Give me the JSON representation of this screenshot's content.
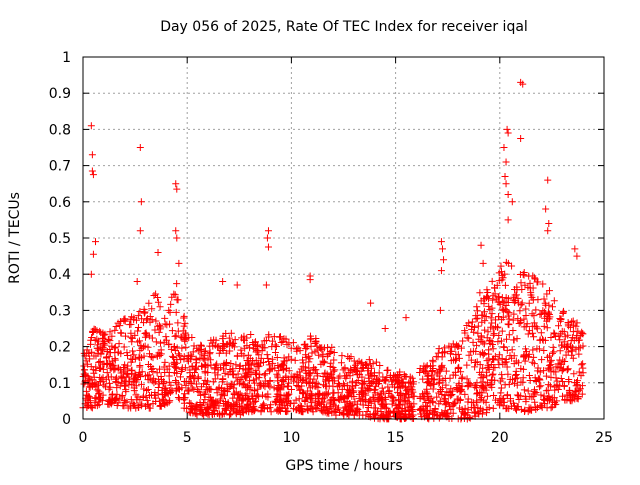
{
  "chart_data": {
    "type": "scatter",
    "title": "Day 056 of 2025, Rate Of TEC Index for receiver iqal",
    "xlabel": "GPS time / hours",
    "ylabel": "ROTI / TECUs",
    "xlim": [
      0,
      25
    ],
    "ylim": [
      0,
      1
    ],
    "grid": true,
    "x_ticks": [
      0,
      5,
      10,
      15,
      20,
      25
    ],
    "x_tick_labels": [
      "0",
      "5",
      "10",
      "15",
      "20",
      "25"
    ],
    "y_ticks": [
      0,
      0.1,
      0.2,
      0.3,
      0.4,
      0.5,
      0.6,
      0.7,
      0.8,
      0.9,
      1
    ],
    "y_tick_labels": [
      "0",
      "0.1",
      "0.2",
      "0.3",
      "0.4",
      "0.5",
      "0.6",
      "0.7",
      "0.8",
      "0.9",
      "1"
    ],
    "marker": "plus",
    "marker_color": "#ff0000",
    "grid_color": "#a0a0a0",
    "series": [
      {
        "name": "ROTI",
        "dense_band_envelope": {
          "x": [
            0,
            0.5,
            1,
            1.5,
            2,
            2.5,
            3,
            3.5,
            4,
            4.5,
            5,
            5.5,
            6,
            6.5,
            7,
            7.5,
            8,
            8.5,
            9,
            9.5,
            10,
            10.5,
            11,
            11.5,
            12,
            12.5,
            13,
            13.5,
            14,
            14.5,
            15,
            15.5,
            15.9,
            16.1,
            16.5,
            17,
            17.5,
            18,
            18.5,
            19,
            19.5,
            20,
            20.5,
            21,
            21.5,
            22,
            22.5,
            23,
            23.5,
            24
          ],
          "low": [
            0.03,
            0.03,
            0.04,
            0.04,
            0.03,
            0.03,
            0.03,
            0.03,
            0.04,
            0.05,
            0.02,
            0.01,
            0.01,
            0.01,
            0.01,
            0.01,
            0.02,
            0.02,
            0.02,
            0.02,
            0.02,
            0.02,
            0.02,
            0.02,
            0.01,
            0.01,
            0.01,
            0.01,
            0.0,
            0.0,
            0.0,
            0.0,
            0.0,
            0.0,
            0.0,
            0.0,
            0.0,
            0.0,
            0.0,
            0.01,
            0.02,
            0.02,
            0.03,
            0.02,
            0.02,
            0.03,
            0.03,
            0.05,
            0.05,
            0.06
          ],
          "high": [
            0.2,
            0.25,
            0.24,
            0.26,
            0.28,
            0.3,
            0.32,
            0.35,
            0.3,
            0.38,
            0.25,
            0.2,
            0.22,
            0.22,
            0.25,
            0.22,
            0.24,
            0.22,
            0.25,
            0.23,
            0.22,
            0.2,
            0.24,
            0.2,
            0.2,
            0.18,
            0.17,
            0.17,
            0.16,
            0.15,
            0.14,
            0.12,
            0.12,
            0.14,
            0.15,
            0.2,
            0.2,
            0.22,
            0.27,
            0.35,
            0.38,
            0.42,
            0.45,
            0.42,
            0.4,
            0.38,
            0.35,
            0.3,
            0.28,
            0.25
          ]
        },
        "outliers": [
          [
            0.4,
            0.81
          ],
          [
            0.45,
            0.73
          ],
          [
            0.45,
            0.685
          ],
          [
            0.5,
            0.675
          ],
          [
            0.6,
            0.49
          ],
          [
            0.5,
            0.455
          ],
          [
            0.4,
            0.4
          ],
          [
            2.75,
            0.75
          ],
          [
            2.8,
            0.6
          ],
          [
            2.75,
            0.52
          ],
          [
            2.6,
            0.38
          ],
          [
            3.6,
            0.46
          ],
          [
            4.45,
            0.65
          ],
          [
            4.5,
            0.635
          ],
          [
            4.45,
            0.52
          ],
          [
            4.5,
            0.5
          ],
          [
            4.6,
            0.43
          ],
          [
            6.7,
            0.38
          ],
          [
            7.4,
            0.37
          ],
          [
            8.9,
            0.52
          ],
          [
            8.85,
            0.5
          ],
          [
            8.9,
            0.475
          ],
          [
            8.8,
            0.37
          ],
          [
            10.9,
            0.395
          ],
          [
            10.9,
            0.385
          ],
          [
            13.8,
            0.32
          ],
          [
            14.5,
            0.25
          ],
          [
            15.5,
            0.28
          ],
          [
            17.2,
            0.49
          ],
          [
            17.25,
            0.47
          ],
          [
            17.3,
            0.44
          ],
          [
            17.2,
            0.41
          ],
          [
            17.15,
            0.3
          ],
          [
            19.1,
            0.48
          ],
          [
            19.2,
            0.43
          ],
          [
            20.35,
            0.8
          ],
          [
            20.4,
            0.79
          ],
          [
            20.2,
            0.75
          ],
          [
            20.3,
            0.71
          ],
          [
            20.25,
            0.67
          ],
          [
            20.3,
            0.65
          ],
          [
            20.4,
            0.62
          ],
          [
            20.6,
            0.6
          ],
          [
            20.4,
            0.55
          ],
          [
            21.0,
            0.93
          ],
          [
            21.1,
            0.925
          ],
          [
            21.0,
            0.775
          ],
          [
            22.3,
            0.66
          ],
          [
            22.2,
            0.58
          ],
          [
            22.35,
            0.54
          ],
          [
            22.3,
            0.52
          ],
          [
            23.6,
            0.47
          ],
          [
            23.7,
            0.45
          ]
        ]
      }
    ]
  }
}
